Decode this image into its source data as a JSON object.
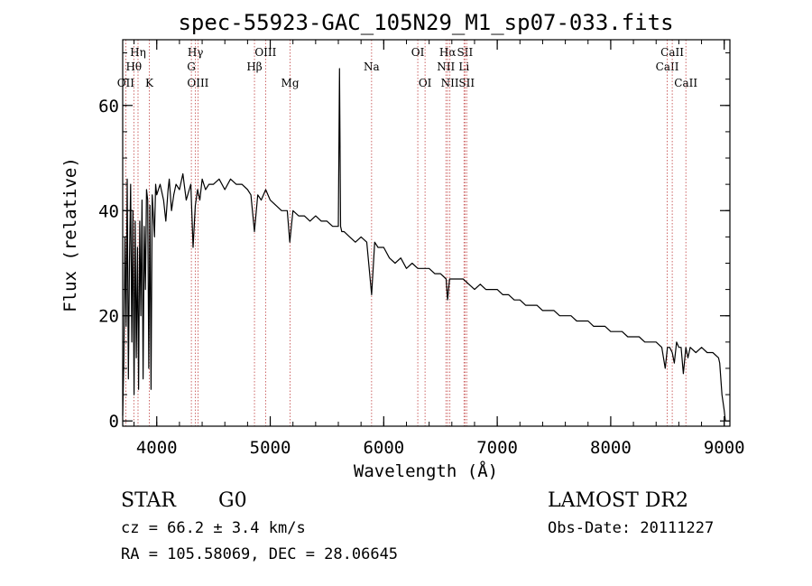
{
  "chart_data": {
    "type": "line",
    "title": "spec-55923-GAC_105N29_M1_sp07-033.fits",
    "xlabel": "Wavelength (Å)",
    "ylabel": "Flux (relative)",
    "xlim": [
      3700,
      9050
    ],
    "ylim": [
      -1,
      72.5
    ],
    "x_ticks": [
      4000,
      5000,
      6000,
      7000,
      8000,
      9000
    ],
    "y_ticks": [
      0,
      20,
      40,
      60
    ],
    "x_minor_step": 200,
    "y_minor_step": 5,
    "grid": false,
    "series": [
      {
        "x": [
          3700,
          3710,
          3720,
          3730,
          3740,
          3750,
          3760,
          3770,
          3780,
          3790,
          3800,
          3810,
          3820,
          3830,
          3840,
          3850,
          3860,
          3870,
          3880,
          3890,
          3900,
          3910,
          3920,
          3930,
          3940,
          3950,
          3960,
          3970,
          3980,
          3990,
          4000,
          4030,
          4060,
          4080,
          4100,
          4110,
          4130,
          4150,
          4170,
          4200,
          4230,
          4260,
          4300,
          4320,
          4340,
          4360,
          4380,
          4400,
          4430,
          4460,
          4500,
          4550,
          4600,
          4650,
          4700,
          4750,
          4800,
          4830,
          4861,
          4890,
          4920,
          4960,
          5000,
          5050,
          5100,
          5150,
          5172,
          5200,
          5250,
          5300,
          5350,
          5400,
          5450,
          5500,
          5550,
          5600,
          5610,
          5620,
          5630,
          5650,
          5700,
          5750,
          5800,
          5850,
          5893,
          5920,
          5950,
          6000,
          6050,
          6100,
          6150,
          6200,
          6250,
          6300,
          6350,
          6400,
          6450,
          6500,
          6550,
          6563,
          6580,
          6600,
          6650,
          6700,
          6750,
          6800,
          6850,
          6900,
          6950,
          7000,
          7050,
          7100,
          7150,
          7200,
          7250,
          7300,
          7350,
          7400,
          7450,
          7500,
          7550,
          7600,
          7650,
          7700,
          7750,
          7800,
          7850,
          7900,
          7950,
          8000,
          8050,
          8100,
          8150,
          8200,
          8250,
          8300,
          8350,
          8400,
          8450,
          8480,
          8500,
          8520,
          8542,
          8560,
          8580,
          8600,
          8620,
          8640,
          8662,
          8680,
          8700,
          8750,
          8800,
          8850,
          8900,
          8950,
          8960,
          8980,
          9000,
          9010
        ],
        "y": [
          1,
          12,
          35,
          18,
          46,
          8,
          30,
          45,
          15,
          40,
          5,
          38,
          12,
          33,
          6,
          38,
          20,
          42,
          8,
          37,
          25,
          44,
          42,
          10,
          41,
          6,
          43,
          39,
          35,
          45,
          43,
          45,
          42,
          38,
          44,
          46,
          40,
          43,
          45,
          44,
          47,
          42,
          45,
          33,
          41,
          44,
          42,
          46,
          44,
          45,
          45,
          46,
          44,
          46,
          45,
          45,
          44,
          43,
          36,
          43,
          42,
          44,
          42,
          41,
          40,
          40,
          34,
          40,
          39,
          39,
          38,
          39,
          38,
          38,
          37,
          37,
          67,
          37,
          36,
          36,
          35,
          34,
          35,
          34,
          24,
          34,
          33,
          33,
          31,
          30,
          31,
          29,
          30,
          29,
          29,
          29,
          28,
          28,
          27,
          23,
          27,
          27,
          27,
          27,
          26,
          25,
          26,
          25,
          25,
          25,
          24,
          24,
          23,
          23,
          22,
          22,
          22,
          21,
          21,
          21,
          20,
          20,
          20,
          19,
          19,
          19,
          18,
          18,
          18,
          17,
          17,
          17,
          16,
          16,
          16,
          15,
          15,
          15,
          14,
          10,
          14,
          14,
          13,
          11,
          15,
          14,
          14,
          9,
          14,
          12,
          14,
          13,
          14,
          13,
          13,
          12,
          11,
          5,
          2,
          0
        ]
      }
    ],
    "lines": [
      {
        "wl": 3727,
        "label": "OII",
        "row": 3
      },
      {
        "wl": 3798,
        "label": "Hθ",
        "row": 2
      },
      {
        "wl": 3835,
        "label": "Hη",
        "row": 1
      },
      {
        "wl": 3934,
        "label": "K",
        "row": 3
      },
      {
        "wl": 4305,
        "label": "G",
        "row": 2
      },
      {
        "wl": 4341,
        "label": "Hγ",
        "row": 1
      },
      {
        "wl": 4363,
        "label": "OIII",
        "row": 3
      },
      {
        "wl": 4861,
        "label": "Hβ",
        "row": 2
      },
      {
        "wl": 4959,
        "label": "OIII",
        "row": 1
      },
      {
        "wl": 5175,
        "label": "Mg",
        "row": 3
      },
      {
        "wl": 5893,
        "label": "Na",
        "row": 2
      },
      {
        "wl": 6300,
        "label": "OI",
        "row": 1
      },
      {
        "wl": 6364,
        "label": "OI",
        "row": 3
      },
      {
        "wl": 6548,
        "label": "NII",
        "row": 2
      },
      {
        "wl": 6563,
        "label": "Hα",
        "row": 1
      },
      {
        "wl": 6583,
        "label": "NII",
        "row": 3
      },
      {
        "wl": 6707,
        "label": "Li",
        "row": 2
      },
      {
        "wl": 6716,
        "label": "SII",
        "row": 1
      },
      {
        "wl": 6731,
        "label": "SII",
        "row": 3
      },
      {
        "wl": 8498,
        "label": "CaII",
        "row": 2
      },
      {
        "wl": 8542,
        "label": "CaII",
        "row": 1
      },
      {
        "wl": 8662,
        "label": "CaII",
        "row": 3
      }
    ],
    "line_color": "#c04040"
  },
  "info": {
    "object_class": "STAR",
    "subclass": "G0",
    "survey": "LAMOST DR2",
    "redshift": "cz = 66.2 ± 3.4 km/s",
    "obs_date": "Obs-Date: 20111227",
    "coords": "RA = 105.58069, DEC =  28.06645"
  }
}
